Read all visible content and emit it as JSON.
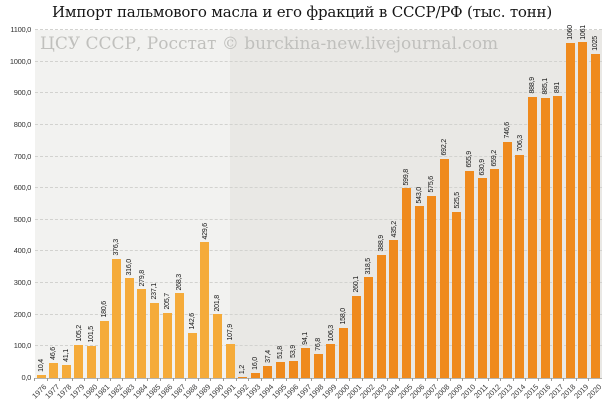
{
  "title": "Импорт пальмового масла и его фракций в СССР/РФ (тыс. тонн)",
  "watermark": "ЦСУ СССР, Росстат © burckina-new.livejournal.com",
  "chart_data": {
    "type": "bar",
    "title": "Импорт пальмового масла и его фракций в СССР/РФ (тыс. тонн)",
    "xlabel": "",
    "ylabel": "",
    "ylim": [
      0,
      1100
    ],
    "ytick_step": 100,
    "yticks": [
      "0,0",
      "100,0",
      "200,0",
      "300,0",
      "400,0",
      "500,0",
      "600,0",
      "700,0",
      "800,0",
      "900,0",
      "1000,0",
      "1100,0"
    ],
    "grid": "horizontal-dashed",
    "legend": "none",
    "categories": [
      "1976",
      "1977",
      "1978",
      "1979",
      "1980",
      "1981",
      "1982",
      "1983",
      "1984",
      "1985",
      "1986",
      "1987",
      "1988",
      "1989",
      "1990",
      "1991",
      "1992",
      "1993",
      "1994",
      "1995",
      "1996",
      "1997",
      "1998",
      "1999",
      "2000",
      "2001",
      "2002",
      "2003",
      "2004",
      "2005",
      "2006",
      "2007",
      "2008",
      "2009",
      "2010",
      "2011",
      "2012",
      "2013",
      "2014",
      "2015",
      "2016",
      "2017",
      "2018",
      "2019",
      "2020"
    ],
    "values": [
      10.4,
      46.6,
      41.1,
      105.2,
      101.5,
      180.6,
      376.3,
      316.0,
      279.8,
      237.1,
      205.7,
      268.3,
      142.6,
      429.6,
      201.8,
      107.9,
      1.2,
      16.0,
      37.4,
      51.8,
      53.9,
      94.1,
      76.8,
      106.3,
      158.0,
      260.1,
      318.5,
      388.9,
      435.2,
      599.8,
      543.0,
      575.6,
      692.2,
      525.5,
      655.9,
      630.9,
      659.2,
      746.6,
      706.3,
      888.9,
      885.1,
      891,
      1060,
      1061,
      1025
    ],
    "value_labels": [
      "10,4",
      "46,6",
      "41,1",
      "105,2",
      "101,5",
      "180,6",
      "376,3",
      "316,0",
      "279,8",
      "237,1",
      "205,7",
      "268,3",
      "142,6",
      "429,6",
      "201,8",
      "107,9",
      "1,2",
      "16,0",
      "37,4",
      "51,8",
      "53,9",
      "94,1",
      "76,8",
      "106,3",
      "158,0",
      "260,1",
      "318,5",
      "388,9",
      "435,2",
      "599,8",
      "543,0",
      "575,6",
      "692,2",
      "525,5",
      "655,9",
      "630,9",
      "659,2",
      "746,6",
      "706,3",
      "888,9",
      "885,1",
      "891",
      "1060",
      "1061",
      "1025"
    ],
    "era_split_index": 16,
    "colors": {
      "bar_ussr": "#f5ab3a",
      "bar_rf": "#ef8a1d",
      "bg_ussr": "#f2f2f0",
      "bg_rf": "#e9e8e5",
      "gridline": "#d2d2cf",
      "axis_line": "#b3b3b0"
    }
  }
}
